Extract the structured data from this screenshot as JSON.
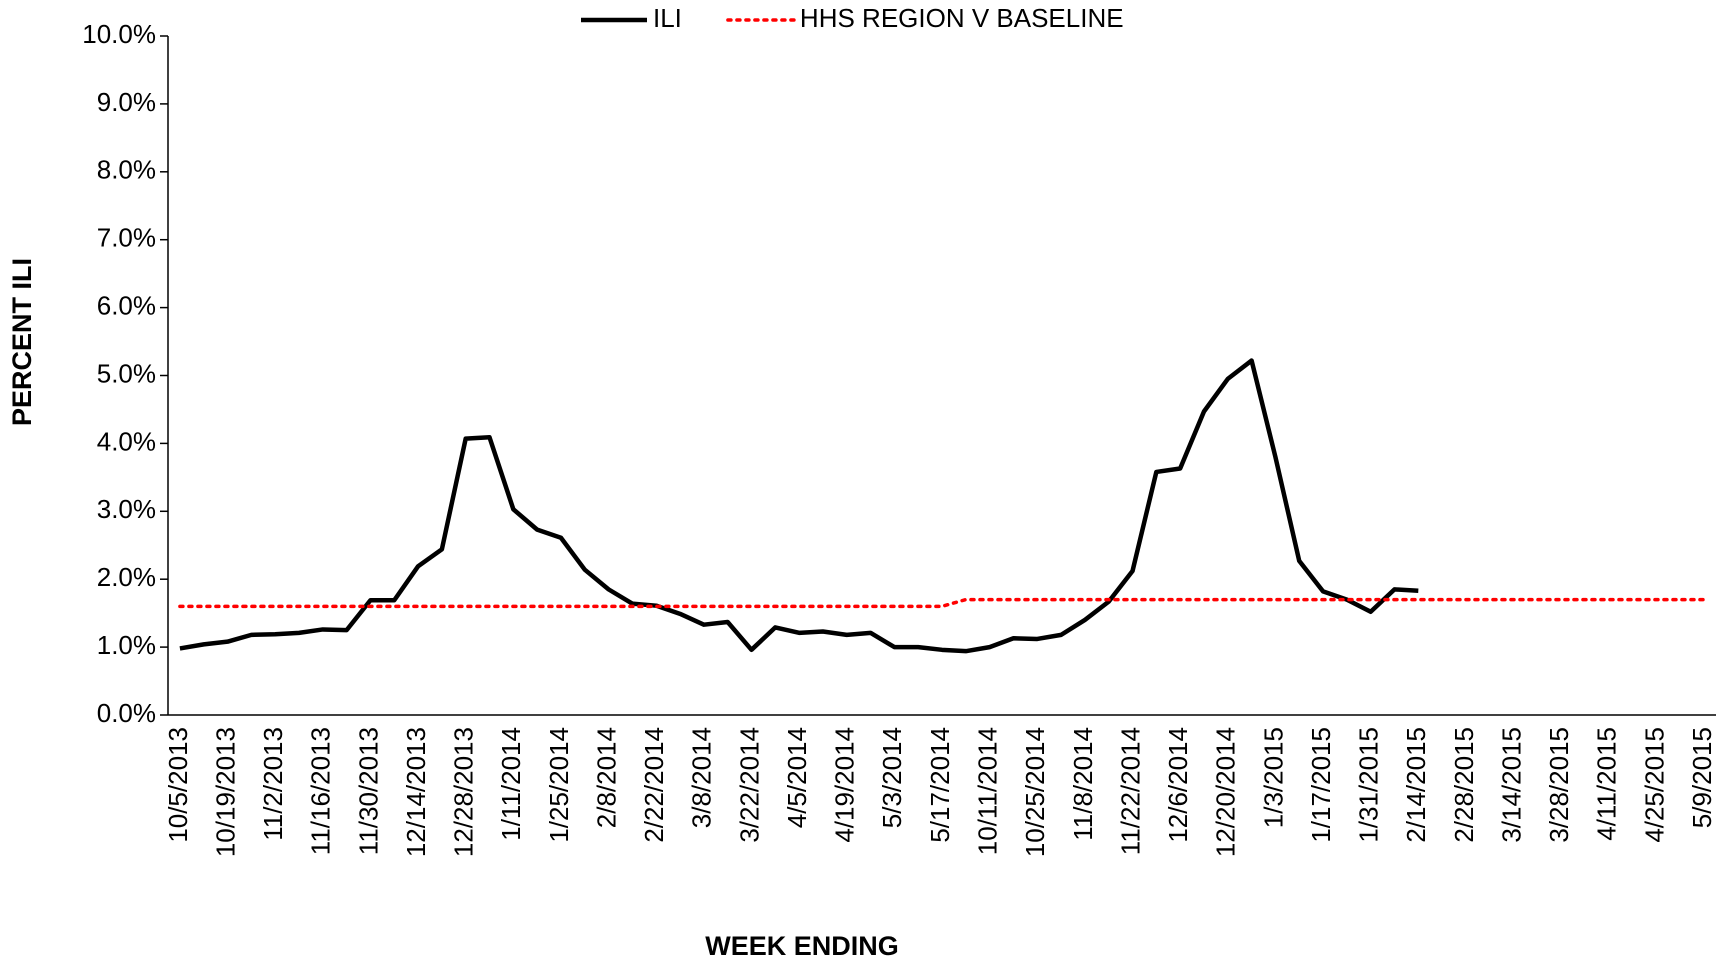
{
  "chart_data": {
    "type": "line",
    "x_label": "WEEK ENDING",
    "y_label": "PERCENT ILI",
    "categories": [
      "10/5/2013",
      null,
      "10/19/2013",
      null,
      "11/2/2013",
      null,
      "11/16/2013",
      null,
      "11/30/2013",
      null,
      "12/14/2013",
      null,
      "12/28/2013",
      null,
      "1/11/2014",
      null,
      "1/25/2014",
      null,
      "2/8/2014",
      null,
      "2/22/2014",
      null,
      "3/8/2014",
      null,
      "3/22/2014",
      null,
      "4/5/2014",
      null,
      "4/19/2014",
      null,
      "5/3/2014",
      null,
      "5/17/2014",
      null,
      "10/11/2014",
      null,
      "10/25/2014",
      null,
      "11/8/2014",
      null,
      "11/22/2014",
      null,
      "12/6/2014",
      null,
      "12/20/2014",
      null,
      "1/3/2015",
      null,
      "1/17/2015",
      null,
      "1/31/2015",
      null,
      "2/14/2015",
      null,
      "2/28/2015",
      null,
      "3/14/2015",
      null,
      "3/28/2015",
      null,
      "4/11/2015",
      null,
      "4/25/2015",
      null,
      "5/9/2015"
    ],
    "series": [
      {
        "name": "ILI",
        "color": "#000000",
        "style": "solid",
        "values": [
          0.98,
          1.04,
          1.08,
          1.18,
          1.19,
          1.21,
          1.26,
          1.25,
          1.69,
          1.69,
          2.19,
          2.44,
          4.07,
          4.09,
          3.03,
          2.73,
          2.61,
          2.14,
          1.85,
          1.64,
          1.61,
          1.49,
          1.33,
          1.37,
          0.96,
          1.29,
          1.21,
          1.23,
          1.18,
          1.21,
          1.0,
          1.0,
          0.96,
          0.94,
          1.0,
          1.13,
          1.12,
          1.18,
          1.4,
          1.67,
          2.12,
          3.58,
          3.63,
          4.47,
          4.95,
          5.22,
          3.8,
          2.27,
          1.82,
          1.7,
          1.52,
          1.85,
          1.83,
          null,
          null,
          null,
          null,
          null,
          null,
          null,
          null,
          null,
          null,
          null,
          null
        ]
      },
      {
        "name": "HHS REGION V BASELINE",
        "color": "#ff0000",
        "style": "dotted",
        "values": [
          1.6,
          1.6,
          1.6,
          1.6,
          1.6,
          1.6,
          1.6,
          1.6,
          1.6,
          1.6,
          1.6,
          1.6,
          1.6,
          1.6,
          1.6,
          1.6,
          1.6,
          1.6,
          1.6,
          1.6,
          1.6,
          1.6,
          1.6,
          1.6,
          1.6,
          1.6,
          1.6,
          1.6,
          1.6,
          1.6,
          1.6,
          1.6,
          1.6,
          1.7,
          1.7,
          1.7,
          1.7,
          1.7,
          1.7,
          1.7,
          1.7,
          1.7,
          1.7,
          1.7,
          1.7,
          1.7,
          1.7,
          1.7,
          1.7,
          1.7,
          1.7,
          1.7,
          1.7,
          1.7,
          1.7,
          1.7,
          1.7,
          1.7,
          1.7,
          1.7,
          1.7,
          1.7,
          1.7,
          1.7,
          1.7
        ]
      }
    ],
    "ylim": [
      0,
      10
    ],
    "yticks": [
      {
        "value": 0,
        "label": "0.0%"
      },
      {
        "value": 1,
        "label": "1.0%"
      },
      {
        "value": 2,
        "label": "2.0%"
      },
      {
        "value": 3,
        "label": "3.0%"
      },
      {
        "value": 4,
        "label": "4.0%"
      },
      {
        "value": 5,
        "label": "5.0%"
      },
      {
        "value": 6,
        "label": "6.0%"
      },
      {
        "value": 7,
        "label": "7.0%"
      },
      {
        "value": 8,
        "label": "8.0%"
      },
      {
        "value": 9,
        "label": "9.0%"
      },
      {
        "value": 10,
        "label": "10.0%"
      }
    ],
    "grid": false,
    "legend": "top"
  }
}
